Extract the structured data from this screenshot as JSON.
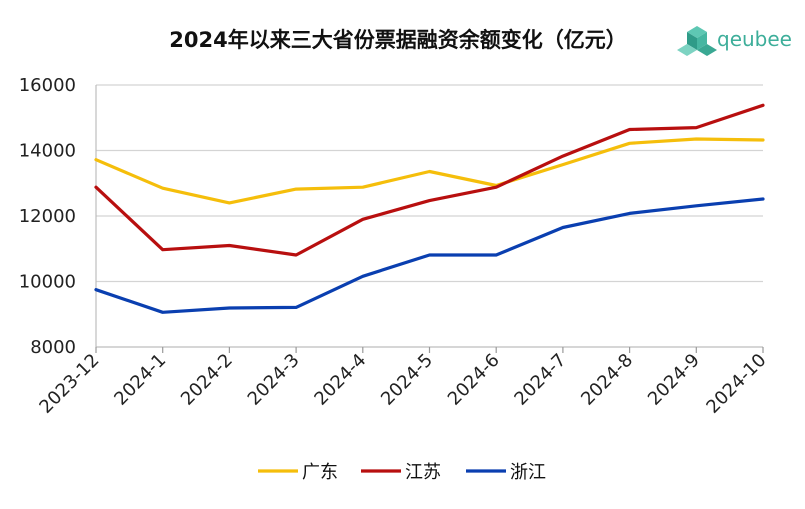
{
  "chart_data": {
    "type": "line",
    "title": "2024年以来三大省份票据融资余额变化（亿元）",
    "xlabel": "",
    "ylabel": "",
    "x": [
      "2023-12",
      "2024-1",
      "2024-2",
      "2024-3",
      "2024-4",
      "2024-5",
      "2024-6",
      "2024-7",
      "2024-8",
      "2024-9",
      "2024-10"
    ],
    "ylim": [
      8000,
      16000
    ],
    "yticks": [
      8000,
      10000,
      12000,
      14000,
      16000
    ],
    "grid": true,
    "legend_position": "bottom",
    "series": [
      {
        "name": "广东",
        "color": "#F5BE0B",
        "values": [
          13720,
          12850,
          12400,
          12820,
          12880,
          13360,
          12930,
          13570,
          14220,
          14350,
          14320
        ]
      },
      {
        "name": "江苏",
        "color": "#B80F0F",
        "values": [
          12880,
          10970,
          11100,
          10810,
          11900,
          12470,
          12880,
          13830,
          14640,
          14700,
          15380
        ]
      },
      {
        "name": "浙江",
        "color": "#0A3FB0",
        "values": [
          9750,
          9060,
          9190,
          9210,
          10160,
          10810,
          10810,
          11650,
          12080,
          12310,
          12520
        ]
      }
    ]
  },
  "logo": {
    "name": "qeubee-logo-icon",
    "text": "qeubee",
    "color": "#3dae9a"
  }
}
